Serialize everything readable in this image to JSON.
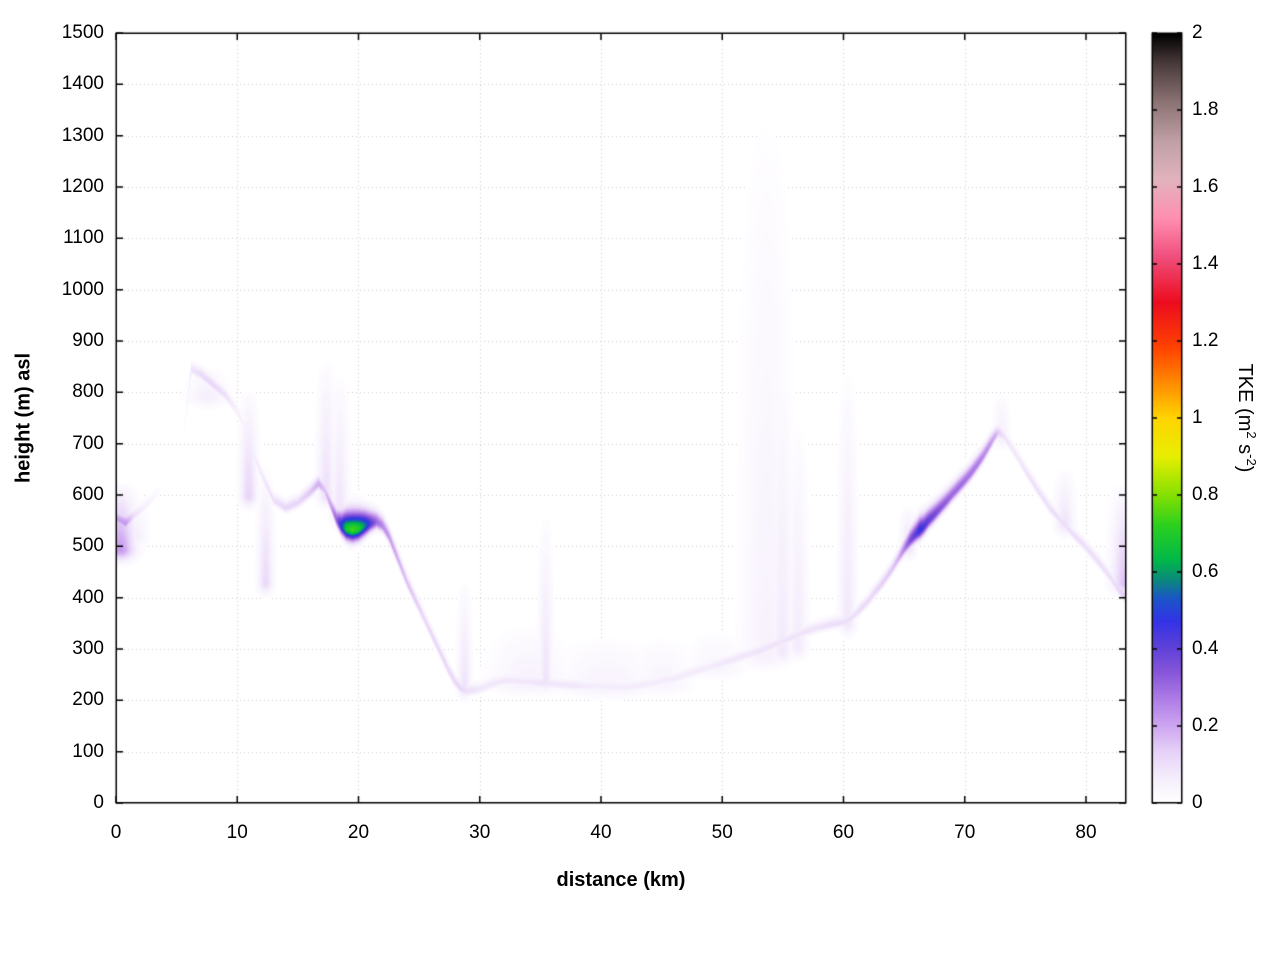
{
  "chart_data": {
    "type": "heatmap",
    "title": "",
    "xlabel": "distance (km)",
    "ylabel": "height (m) asl",
    "colorbar_label": {
      "pre": "TKE (m",
      "sup1": "2",
      "mid": " s",
      "sup2": "-2",
      "post": ")"
    },
    "xlim": [
      0,
      83.3
    ],
    "ylim": [
      0,
      1500
    ],
    "clim": [
      0,
      2
    ],
    "grid": true,
    "x_ticks": [
      0,
      10,
      20,
      30,
      40,
      50,
      60,
      70,
      80
    ],
    "x_tick_labels": [
      "0",
      "10",
      "20",
      "30",
      "40",
      "50",
      "60",
      "70",
      "80"
    ],
    "y_ticks": [
      0,
      100,
      200,
      300,
      400,
      500,
      600,
      700,
      800,
      900,
      1000,
      1100,
      1200,
      1300,
      1400,
      1500
    ],
    "y_tick_labels": [
      "0",
      "100",
      "200",
      "300",
      "400",
      "500",
      "600",
      "700",
      "800",
      "900",
      "1000",
      "1100",
      "1200",
      "1300",
      "1400",
      "1500"
    ],
    "colorbar_ticks": [
      0,
      0.2,
      0.4,
      0.6,
      0.8,
      1,
      1.2,
      1.4,
      1.6,
      1.8,
      2
    ],
    "colorbar_tick_labels": [
      "0",
      "0.2",
      "0.4",
      "0.6",
      "0.8",
      "1",
      "1.2",
      "1.4",
      "1.6",
      "1.8",
      "2"
    ],
    "palette_stops": [
      [
        0.0,
        "#ffffff"
      ],
      [
        0.06,
        "#f6effc"
      ],
      [
        0.13,
        "#e7d3f8"
      ],
      [
        0.2,
        "#cda5ef"
      ],
      [
        0.27,
        "#ad7ce6"
      ],
      [
        0.34,
        "#8655d8"
      ],
      [
        0.41,
        "#5b3fd8"
      ],
      [
        0.47,
        "#3333e6"
      ],
      [
        0.53,
        "#1b55c8"
      ],
      [
        0.58,
        "#0b8a7a"
      ],
      [
        0.63,
        "#00b84a"
      ],
      [
        0.72,
        "#2bd01f"
      ],
      [
        0.8,
        "#86e000"
      ],
      [
        0.9,
        "#e8ee00"
      ],
      [
        1.0,
        "#ffd400"
      ],
      [
        1.08,
        "#ff9400"
      ],
      [
        1.18,
        "#ff4400"
      ],
      [
        1.3,
        "#ec0c1e"
      ],
      [
        1.42,
        "#f04f7e"
      ],
      [
        1.52,
        "#ff8fb0"
      ],
      [
        1.62,
        "#e2b3bd"
      ],
      [
        1.72,
        "#bfa0a6"
      ],
      [
        1.82,
        "#8d7474"
      ],
      [
        1.92,
        "#4a3c3c"
      ],
      [
        2.0,
        "#000000"
      ]
    ],
    "terrain_profile": {
      "x": [
        0,
        0.8,
        1.5,
        2.5,
        4,
        5.5,
        6.2,
        7,
        8,
        9,
        9.8,
        10.5,
        11,
        12,
        13,
        14,
        15,
        16,
        16.7,
        17.2,
        17.8,
        18.2,
        18.6,
        19,
        19.5,
        20,
        20.5,
        21,
        21.5,
        22,
        22.5,
        23,
        23.5,
        24,
        24.5,
        25,
        25.5,
        26,
        26.5,
        27,
        27.5,
        28,
        28.5,
        29,
        30,
        31,
        32,
        33,
        34,
        35,
        36,
        37,
        38,
        39,
        40,
        41,
        42,
        43,
        44,
        45,
        46,
        47,
        48,
        49,
        50,
        51,
        52,
        53,
        54,
        55,
        56,
        57,
        58,
        59,
        60,
        60.5,
        61,
        61.5,
        62,
        62.5,
        63,
        63.5,
        64,
        64.5,
        65,
        65.5,
        66,
        66.3,
        66.6,
        67,
        67.5,
        68,
        68.5,
        69,
        69.5,
        70,
        70.5,
        71,
        71.5,
        72,
        72.5,
        72.8,
        73.2,
        73.8,
        74.5,
        75,
        76,
        77,
        78,
        79,
        80,
        81,
        82,
        82.7,
        83.3
      ],
      "height_m": [
        555,
        545,
        560,
        580,
        620,
        700,
        845,
        835,
        815,
        795,
        770,
        740,
        700,
        640,
        590,
        575,
        585,
        605,
        622,
        610,
        575,
        552,
        540,
        535,
        533,
        535,
        540,
        545,
        548,
        540,
        520,
        490,
        460,
        430,
        405,
        380,
        355,
        330,
        305,
        280,
        255,
        235,
        222,
        218,
        222,
        232,
        238,
        238,
        236,
        234,
        232,
        230,
        228,
        228,
        228,
        226,
        225,
        228,
        232,
        238,
        242,
        250,
        258,
        265,
        272,
        280,
        288,
        295,
        305,
        315,
        325,
        335,
        342,
        348,
        352,
        358,
        368,
        380,
        392,
        408,
        422,
        438,
        455,
        475,
        495,
        512,
        525,
        532,
        538,
        550,
        562,
        575,
        588,
        602,
        615,
        628,
        642,
        658,
        675,
        695,
        715,
        722,
        715,
        695,
        668,
        648,
        610,
        575,
        548,
        522,
        498,
        470,
        440,
        415,
        400
      ],
      "tke": [
        0.2,
        0.22,
        0.1,
        0.05,
        0,
        0,
        0.09,
        0.11,
        0.12,
        0.1,
        0.06,
        0.05,
        0.06,
        0.08,
        0.1,
        0.12,
        0.12,
        0.15,
        0.19,
        0.16,
        0.22,
        0.32,
        0.5,
        0.68,
        0.74,
        0.7,
        0.58,
        0.42,
        0.3,
        0.25,
        0.22,
        0.2,
        0.18,
        0.16,
        0.15,
        0.13,
        0.12,
        0.12,
        0.12,
        0.12,
        0.12,
        0.12,
        0.12,
        0.1,
        0.08,
        0.08,
        0.08,
        0.08,
        0.08,
        0.09,
        0.08,
        0.08,
        0.08,
        0.07,
        0.07,
        0.07,
        0.07,
        0.07,
        0.07,
        0.07,
        0.07,
        0.07,
        0.07,
        0.07,
        0.08,
        0.08,
        0.08,
        0.09,
        0.09,
        0.09,
        0.09,
        0.09,
        0.09,
        0.1,
        0.1,
        0.1,
        0.1,
        0.11,
        0.11,
        0.12,
        0.13,
        0.14,
        0.15,
        0.18,
        0.26,
        0.36,
        0.42,
        0.48,
        0.44,
        0.4,
        0.37,
        0.34,
        0.32,
        0.3,
        0.3,
        0.29,
        0.28,
        0.27,
        0.25,
        0.23,
        0.19,
        0.14,
        0.1,
        0.08,
        0.08,
        0.09,
        0.1,
        0.1,
        0.1,
        0.1,
        0.1,
        0.1,
        0.1,
        0.12,
        0.15,
        0.18
      ]
    },
    "plumes": [
      {
        "x_km": 0.3,
        "h_bottom_m": 495,
        "h_top_m": 625,
        "tke": 0.22,
        "sigma_x_km": 0.8
      },
      {
        "x_km": 1.6,
        "h_bottom_m": 520,
        "h_top_m": 600,
        "tke": 0.06,
        "sigma_x_km": 0.6
      },
      {
        "x_km": 7.5,
        "h_bottom_m": 795,
        "h_top_m": 850,
        "tke": 0.06,
        "sigma_x_km": 1.0
      },
      {
        "x_km": 10.9,
        "h_bottom_m": 600,
        "h_top_m": 810,
        "tke": 0.12,
        "sigma_x_km": 0.45
      },
      {
        "x_km": 12.3,
        "h_bottom_m": 430,
        "h_top_m": 660,
        "tke": 0.11,
        "sigma_x_km": 0.4
      },
      {
        "x_km": 17.3,
        "h_bottom_m": 600,
        "h_top_m": 870,
        "tke": 0.1,
        "sigma_x_km": 0.45
      },
      {
        "x_km": 18.4,
        "h_bottom_m": 560,
        "h_top_m": 845,
        "tke": 0.09,
        "sigma_x_km": 0.45
      },
      {
        "x_km": 28.7,
        "h_bottom_m": 225,
        "h_top_m": 440,
        "tke": 0.09,
        "sigma_x_km": 0.35
      },
      {
        "x_km": 34.0,
        "h_bottom_m": 235,
        "h_top_m": 350,
        "tke": 0.055,
        "sigma_x_km": 2.0
      },
      {
        "x_km": 35.4,
        "h_bottom_m": 240,
        "h_top_m": 570,
        "tke": 0.09,
        "sigma_x_km": 0.35
      },
      {
        "x_km": 40.5,
        "h_bottom_m": 228,
        "h_top_m": 330,
        "tke": 0.05,
        "sigma_x_km": 2.5
      },
      {
        "x_km": 45.0,
        "h_bottom_m": 235,
        "h_top_m": 330,
        "tke": 0.045,
        "sigma_x_km": 1.5
      },
      {
        "x_km": 49.5,
        "h_bottom_m": 265,
        "h_top_m": 340,
        "tke": 0.04,
        "sigma_x_km": 1.5
      },
      {
        "x_km": 53.6,
        "h_bottom_m": 285,
        "h_top_m": 1390,
        "tke": 0.05,
        "sigma_x_km": 1.3
      },
      {
        "x_km": 54.9,
        "h_bottom_m": 295,
        "h_top_m": 900,
        "tke": 0.075,
        "sigma_x_km": 0.55
      },
      {
        "x_km": 56.2,
        "h_bottom_m": 305,
        "h_top_m": 760,
        "tke": 0.07,
        "sigma_x_km": 0.5
      },
      {
        "x_km": 60.3,
        "h_bottom_m": 350,
        "h_top_m": 860,
        "tke": 0.08,
        "sigma_x_km": 0.45
      },
      {
        "x_km": 65.3,
        "h_bottom_m": 500,
        "h_top_m": 580,
        "tke": 0.1,
        "sigma_x_km": 0.4
      },
      {
        "x_km": 73.0,
        "h_bottom_m": 715,
        "h_top_m": 805,
        "tke": 0.06,
        "sigma_x_km": 0.4
      },
      {
        "x_km": 78.2,
        "h_bottom_m": 545,
        "h_top_m": 655,
        "tke": 0.09,
        "sigma_x_km": 0.5
      },
      {
        "x_km": 83.2,
        "h_bottom_m": 430,
        "h_top_m": 625,
        "tke": 0.16,
        "sigma_x_km": 0.7
      }
    ]
  }
}
